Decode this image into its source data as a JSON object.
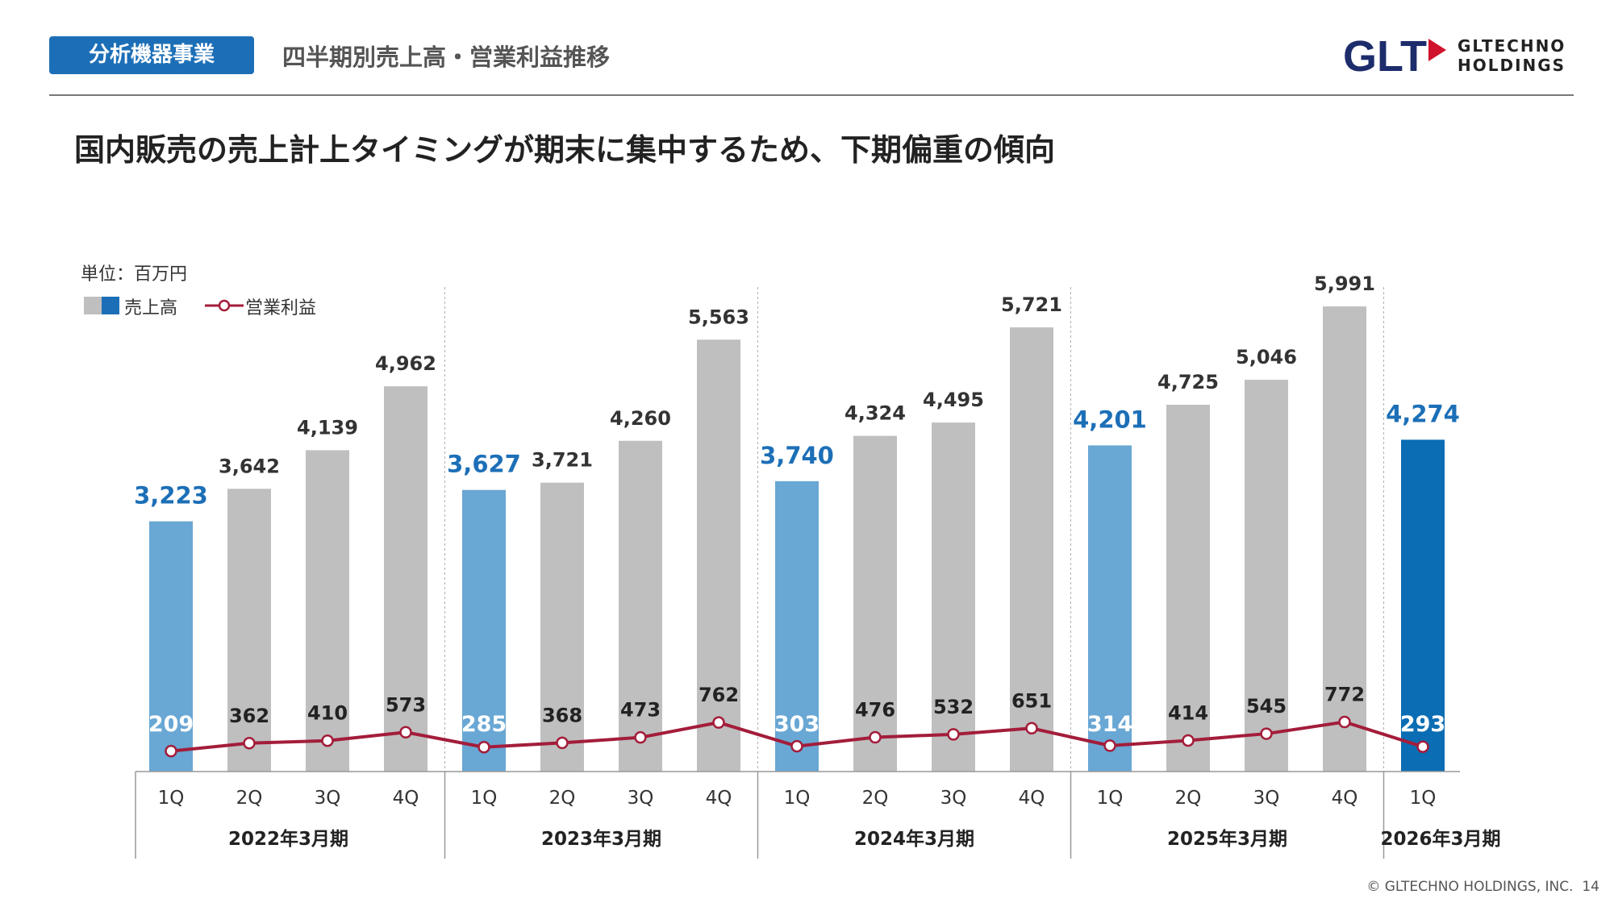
{
  "header": {
    "badge": "分析機器事業",
    "section_title": "四半期別売上高・営業利益推移",
    "headline": "国内販売の売上計上タイミングが期末に集中するため、下期偏重の傾向",
    "logo_mark": "GLT",
    "logo_line1": "GLTECHNO",
    "logo_line2": "HOLDINGS"
  },
  "colors": {
    "q1_bar": "#69a7d4",
    "latest_bar": "#0b6db3",
    "other_bar": "#bfbfbf",
    "line": "#a31d3a",
    "q1_label": "#1c6fb7",
    "logo_navy": "#1d2c6b",
    "logo_red": "#d0122c"
  },
  "footer": {
    "copyright": "© GLTECHNO HOLDINGS, INC.",
    "page": "14"
  },
  "chart_data": {
    "type": "bar",
    "unit_label": "単位：百万円",
    "legend": [
      {
        "name": "売上高",
        "type": "bar"
      },
      {
        "name": "営業利益",
        "type": "line"
      }
    ],
    "groups": [
      {
        "label": "2022年3月期",
        "quarters": [
          "1Q",
          "2Q",
          "3Q",
          "4Q"
        ]
      },
      {
        "label": "2023年3月期",
        "quarters": [
          "1Q",
          "2Q",
          "3Q",
          "4Q"
        ]
      },
      {
        "label": "2024年3月期",
        "quarters": [
          "1Q",
          "2Q",
          "3Q",
          "4Q"
        ]
      },
      {
        "label": "2025年3月期",
        "quarters": [
          "1Q",
          "2Q",
          "3Q",
          "4Q"
        ]
      },
      {
        "label": "2026年3月期",
        "quarters": [
          "1Q"
        ]
      }
    ],
    "series": [
      {
        "name": "売上高",
        "type": "bar",
        "values": [
          3223,
          3642,
          4139,
          4962,
          3627,
          3721,
          4260,
          5563,
          3740,
          4324,
          4495,
          5721,
          4201,
          4725,
          5046,
          5991,
          4274
        ],
        "labels": [
          "3,223",
          "3,642",
          "4,139",
          "4,962",
          "3,627",
          "3,721",
          "4,260",
          "5,563",
          "3,740",
          "4,324",
          "4,495",
          "5,721",
          "4,201",
          "4,725",
          "5,046",
          "5,991",
          "4,274"
        ]
      },
      {
        "name": "営業利益",
        "type": "line",
        "values": [
          209,
          362,
          410,
          573,
          285,
          368,
          473,
          762,
          303,
          476,
          532,
          651,
          314,
          414,
          545,
          772,
          293
        ],
        "labels": [
          "209",
          "362",
          "410",
          "573",
          "285",
          "368",
          "473",
          "762",
          "303",
          "476",
          "532",
          "651",
          "314",
          "414",
          "545",
          "772",
          "293"
        ]
      }
    ],
    "ylim": [
      0,
      7000
    ],
    "grid": false
  }
}
